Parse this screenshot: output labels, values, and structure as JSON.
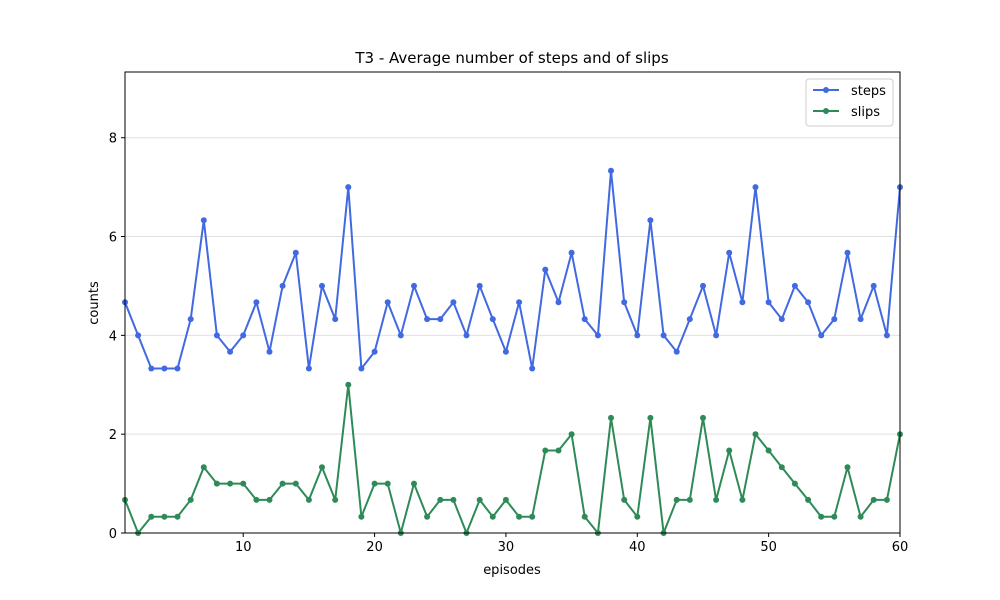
{
  "chart_data": {
    "type": "line",
    "title": "T3 - Average number of steps and of slips",
    "xlabel": "episodes",
    "ylabel": "counts",
    "xlim": [
      1,
      60
    ],
    "ylim": [
      0,
      9.33
    ],
    "xticks": [
      10,
      20,
      30,
      40,
      50,
      60
    ],
    "yticks": [
      0,
      2,
      4,
      6,
      8
    ],
    "grid": "horizontal",
    "legend_position": "top-right",
    "x": [
      1,
      2,
      3,
      4,
      5,
      6,
      7,
      8,
      9,
      10,
      11,
      12,
      13,
      14,
      15,
      16,
      17,
      18,
      19,
      20,
      21,
      22,
      23,
      24,
      25,
      26,
      27,
      28,
      29,
      30,
      31,
      32,
      33,
      34,
      35,
      36,
      37,
      38,
      39,
      40,
      41,
      42,
      43,
      44,
      45,
      46,
      47,
      48,
      49,
      50,
      51,
      52,
      53,
      54,
      55,
      56,
      57,
      58,
      59,
      60
    ],
    "series": [
      {
        "name": "steps",
        "color": "#4169e1",
        "values": [
          4.67,
          4.0,
          3.33,
          3.33,
          3.33,
          4.33,
          6.33,
          4.0,
          3.67,
          4.0,
          4.67,
          3.67,
          5.0,
          5.67,
          3.33,
          5.0,
          4.33,
          7.0,
          3.33,
          3.67,
          4.67,
          4.0,
          5.0,
          4.33,
          4.33,
          4.67,
          4.0,
          5.0,
          4.33,
          3.67,
          4.67,
          3.33,
          5.33,
          4.67,
          5.67,
          4.33,
          4.0,
          7.33,
          4.67,
          4.0,
          6.33,
          4.0,
          3.67,
          4.33,
          5.0,
          4.0,
          5.67,
          4.67,
          7.0,
          4.67,
          4.33,
          5.0,
          4.67,
          4.0,
          4.33,
          5.67,
          4.33,
          5.0,
          4.0,
          7.0
        ]
      },
      {
        "name": "slips",
        "color": "#2e8b57",
        "values": [
          0.67,
          0.0,
          0.33,
          0.33,
          0.33,
          0.67,
          1.33,
          1.0,
          1.0,
          1.0,
          0.67,
          0.67,
          1.0,
          1.0,
          0.67,
          1.33,
          0.67,
          3.0,
          0.33,
          1.0,
          1.0,
          0.0,
          1.0,
          0.33,
          0.67,
          0.67,
          0.0,
          0.67,
          0.33,
          0.67,
          0.33,
          0.33,
          1.67,
          1.67,
          2.0,
          0.33,
          0.0,
          2.33,
          0.67,
          0.33,
          2.33,
          0.0,
          0.67,
          0.67,
          2.33,
          0.67,
          1.67,
          0.67,
          2.0,
          1.67,
          1.33,
          1.0,
          0.67,
          0.33,
          0.33,
          1.33,
          0.33,
          0.67,
          0.67,
          2.0
        ]
      }
    ]
  }
}
